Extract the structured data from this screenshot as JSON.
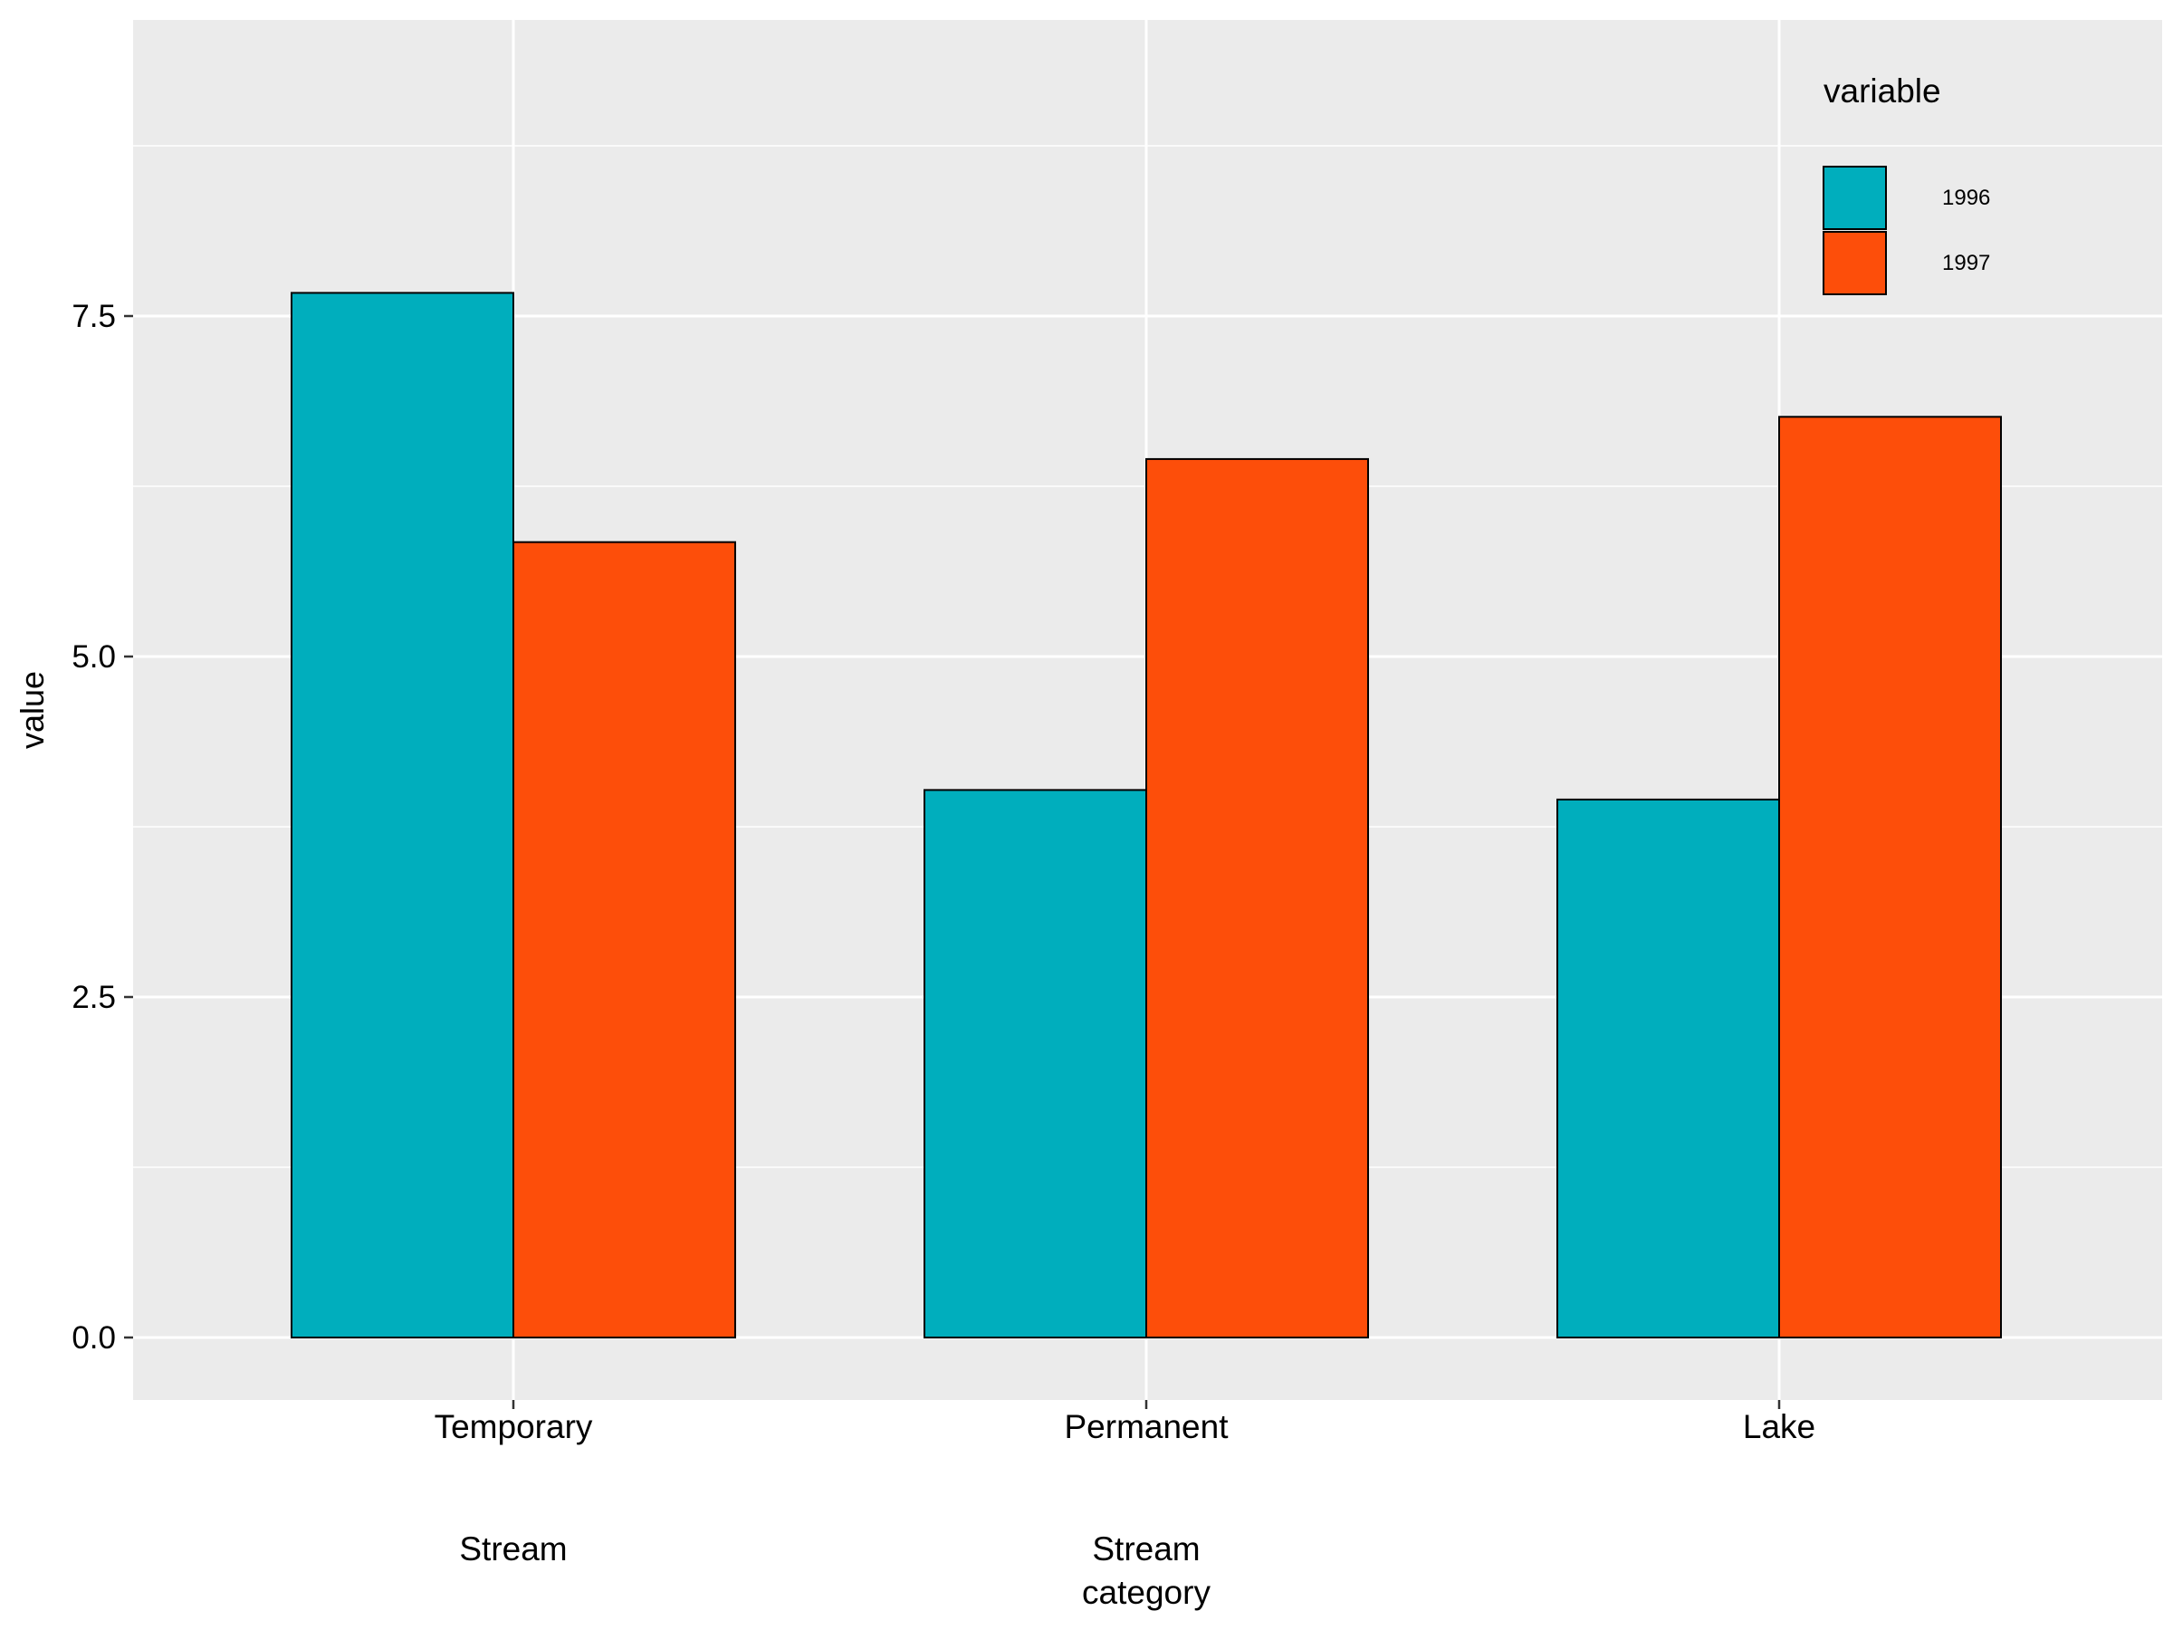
{
  "chart_data": {
    "type": "bar",
    "title": "",
    "xlabel": "",
    "ylabel": "value",
    "categories": [
      "Temporary",
      "Permanent",
      "Lake"
    ],
    "category_sublabels": [
      [
        "Stream"
      ],
      [
        "Stream",
        "category"
      ],
      []
    ],
    "series": [
      {
        "name": "1996",
        "values": [
          7.67,
          4.02,
          3.95
        ],
        "color": "#00AEBD"
      },
      {
        "name": "1997",
        "values": [
          5.84,
          6.45,
          6.76
        ],
        "color": "#FD4E0A"
      }
    ],
    "ylim": [
      -0.45,
      9.65
    ],
    "yticks": [
      0.0,
      2.5,
      5.0,
      7.5
    ],
    "ytick_labels": [
      "0.0",
      "2.5",
      "5.0",
      "7.5"
    ],
    "grid": true,
    "legend": {
      "title": "variable",
      "placement": "top-right (inside plot)"
    },
    "colors": {
      "panel_background": "#EBEBEB",
      "grid": "#FFFFFF",
      "bar_outline": "#000000"
    }
  }
}
